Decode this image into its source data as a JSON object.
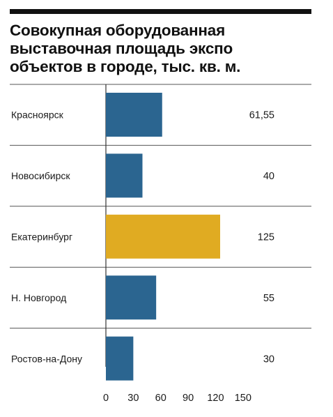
{
  "title_lines": [
    "Совокупная оборудованная",
    "выставочная  площадь экспо",
    "объектов в городе, тыс. кв. м."
  ],
  "colors": {
    "bar": "#2b6590",
    "highlight": "#e0ab22",
    "divider": "#555555",
    "axis": "#333333"
  },
  "chart_data": {
    "type": "bar",
    "orientation": "horizontal",
    "title": "Совокупная оборудованная выставочная  площадь экспо объектов в городе, тыс. кв. м.",
    "categories": [
      "Красноярск",
      "Новосибирск",
      "Екатеринбург",
      "Н. Новгород",
      "Ростов-на-Дону"
    ],
    "values": [
      61.55,
      40,
      125,
      55,
      30
    ],
    "value_labels": [
      "61,55",
      "40",
      "125",
      "55",
      "30"
    ],
    "highlight_category": "Екатеринбург",
    "x_ticks": [
      "0",
      "30",
      "60",
      "90",
      "120",
      "150"
    ],
    "xlim": [
      0,
      150
    ],
    "grid": false,
    "legend": "none"
  }
}
